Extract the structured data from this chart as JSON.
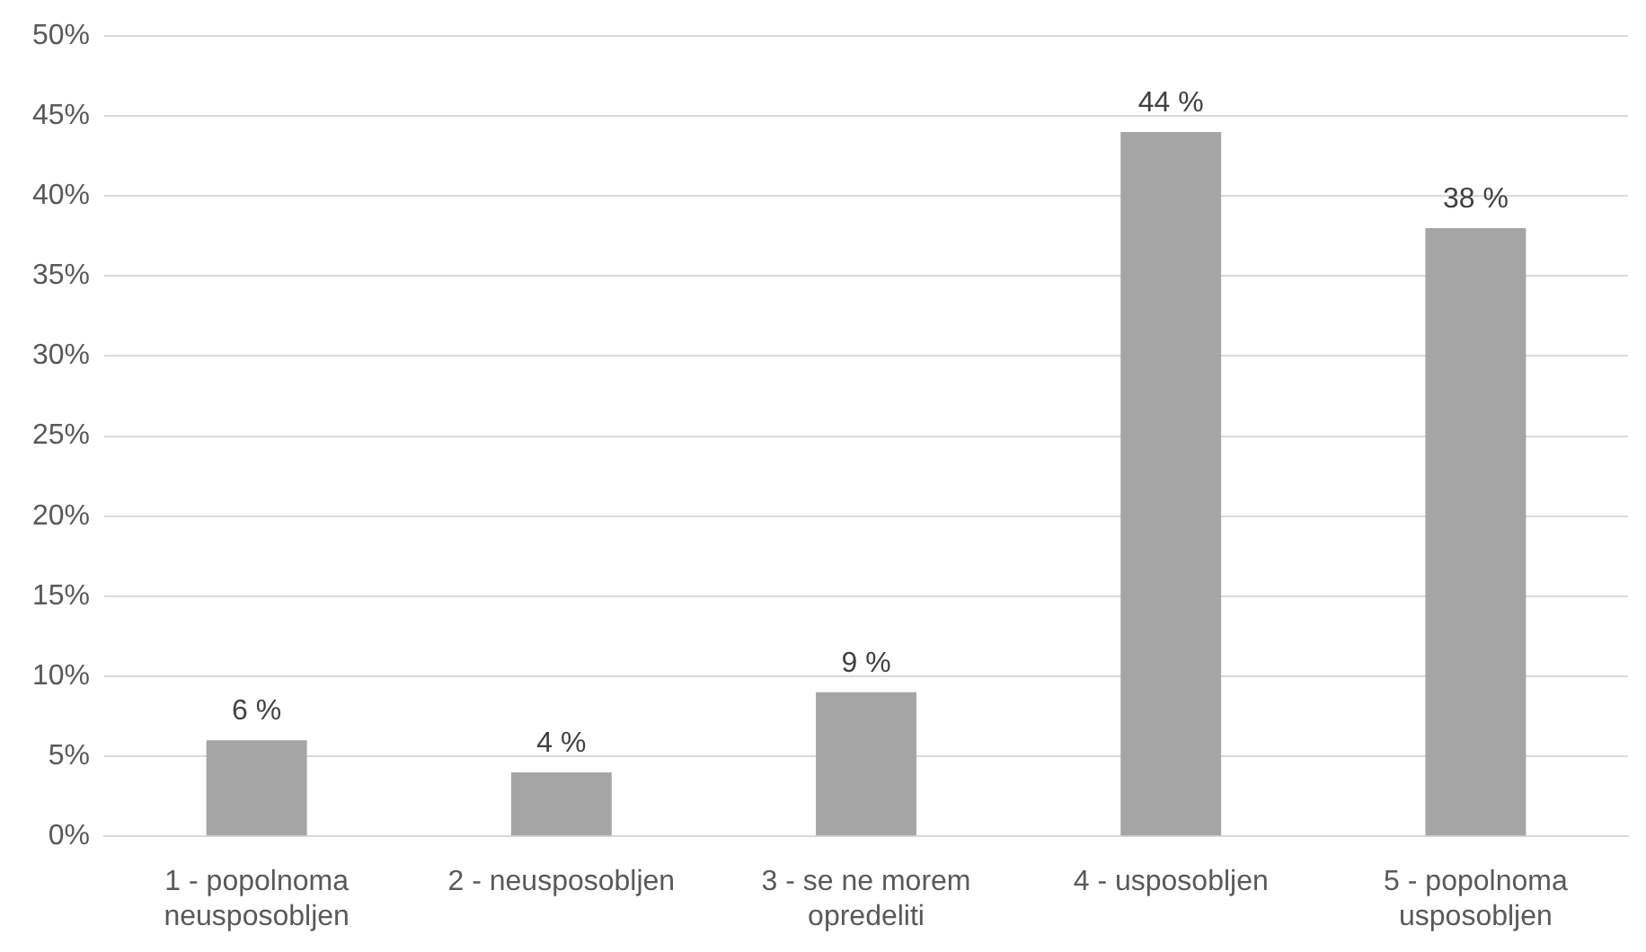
{
  "chart_data": {
    "type": "bar",
    "categories": [
      "1 - popolnoma neusposobljen",
      "2 - neusposobljen",
      "3 - se ne morem opredeliti",
      "4 - usposobljen",
      "5 - popolnoma usposobljen"
    ],
    "values": [
      6,
      4,
      9,
      44,
      38
    ],
    "value_labels": [
      "6 %",
      "4 %",
      "9 %",
      "44 %",
      "38 %"
    ],
    "color": "#a5a5a5",
    "ylim": [
      0,
      50
    ],
    "yticks": [
      {
        "value": 0,
        "label": "0%"
      },
      {
        "value": 5,
        "label": "5%"
      },
      {
        "value": 10,
        "label": "10%"
      },
      {
        "value": 15,
        "label": "15%"
      },
      {
        "value": 20,
        "label": "20%"
      },
      {
        "value": 25,
        "label": "25%"
      },
      {
        "value": 30,
        "label": "30%"
      },
      {
        "value": 35,
        "label": "35%"
      },
      {
        "value": 40,
        "label": "40%"
      },
      {
        "value": 45,
        "label": "45%"
      },
      {
        "value": 50,
        "label": "50%"
      }
    ],
    "grid": "y",
    "legend": false
  }
}
